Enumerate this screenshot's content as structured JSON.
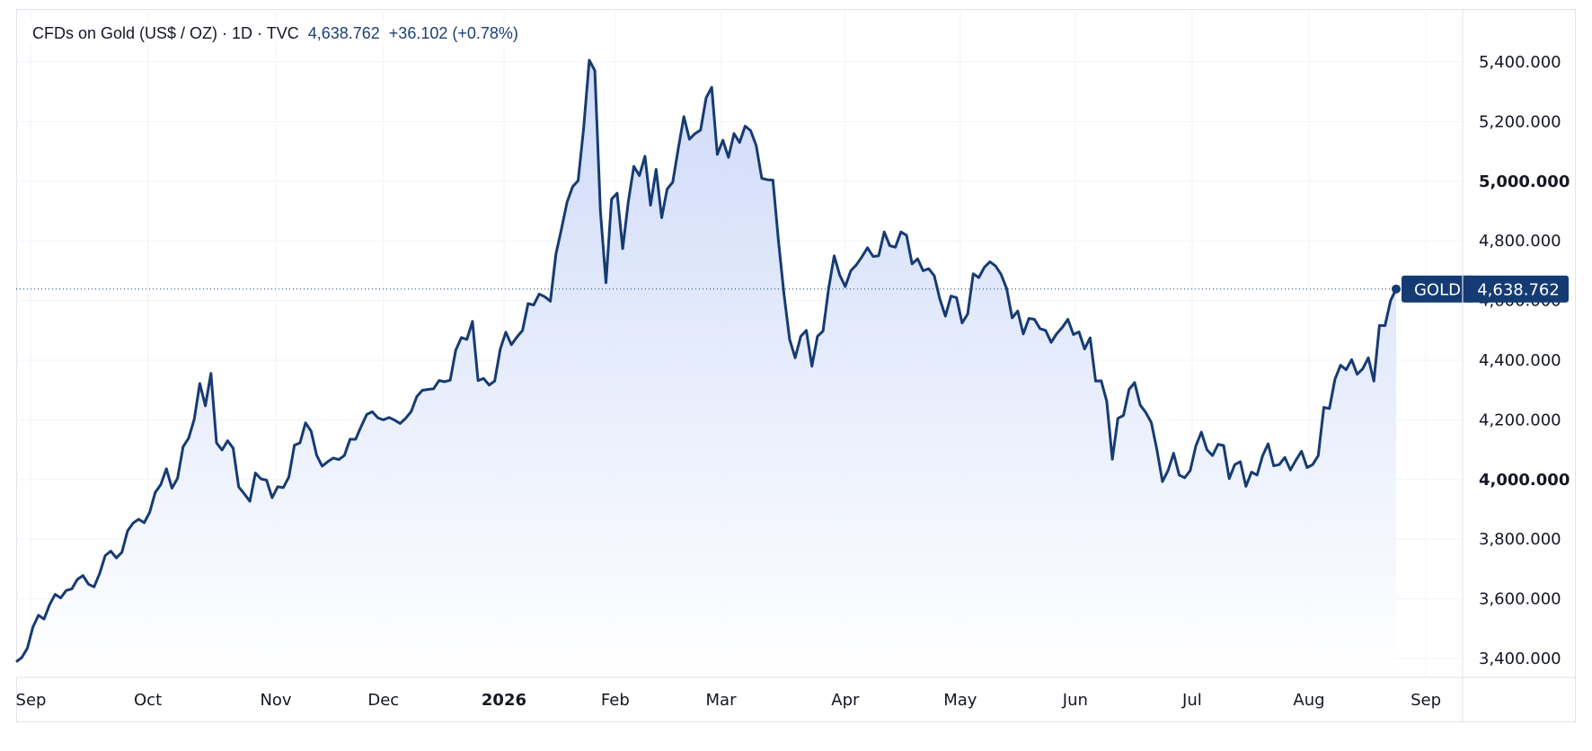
{
  "header": {
    "symbol_desc": "CFDs on Gold (US$ / OZ) · 1D · TVC",
    "last": "4,638.762",
    "change": "+36.102 (+0.78%)"
  },
  "price_label": {
    "ticker": "GOLD",
    "value": "4,638.762"
  },
  "colors": {
    "line": "#163b73",
    "fill_top": "#c9d6f8",
    "fill_bottom": "#ffffff",
    "grid": "#f0f3fa",
    "axis_border": "#e0e3eb"
  },
  "chart_data": {
    "type": "area",
    "series": [
      {
        "name": "GOLD",
        "points": [
          [
            0,
            3389
          ],
          [
            3,
            3403
          ],
          [
            6,
            3434
          ],
          [
            9,
            3505
          ],
          [
            12,
            3545
          ],
          [
            15,
            3532
          ],
          [
            18,
            3580
          ],
          [
            21,
            3615
          ],
          [
            24,
            3603
          ],
          [
            27,
            3628
          ],
          [
            30,
            3633
          ],
          [
            33,
            3665
          ],
          [
            36,
            3678
          ],
          [
            39,
            3649
          ],
          [
            42,
            3640
          ],
          [
            45,
            3685
          ],
          [
            48,
            3745
          ],
          [
            51,
            3760
          ],
          [
            54,
            3737
          ],
          [
            57,
            3756
          ],
          [
            60,
            3827
          ],
          [
            63,
            3854
          ],
          [
            66,
            3867
          ],
          [
            69,
            3855
          ],
          [
            72,
            3890
          ],
          [
            75,
            3957
          ],
          [
            78,
            3983
          ],
          [
            81,
            4036
          ],
          [
            84,
            3971
          ],
          [
            87,
            4004
          ],
          [
            90,
            4110
          ],
          [
            93,
            4139
          ],
          [
            96,
            4202
          ],
          [
            99,
            4322
          ],
          [
            102,
            4247
          ],
          [
            105,
            4356
          ],
          [
            108,
            4123
          ],
          [
            111,
            4099
          ],
          [
            114,
            4130
          ],
          [
            117,
            4105
          ],
          [
            120,
            3975
          ],
          [
            123,
            3952
          ],
          [
            126,
            3927
          ],
          [
            129,
            4022
          ],
          [
            132,
            4002
          ],
          [
            135,
            3998
          ],
          [
            138,
            3939
          ],
          [
            141,
            3976
          ],
          [
            144,
            3973
          ],
          [
            147,
            4008
          ],
          [
            150,
            4115
          ],
          [
            153,
            4123
          ],
          [
            156,
            4190
          ],
          [
            159,
            4162
          ],
          [
            162,
            4081
          ],
          [
            165,
            4045
          ],
          [
            168,
            4060
          ],
          [
            171,
            4072
          ],
          [
            174,
            4067
          ],
          [
            177,
            4081
          ],
          [
            180,
            4135
          ],
          [
            183,
            4135
          ],
          [
            186,
            4178
          ],
          [
            189,
            4218
          ],
          [
            192,
            4227
          ],
          [
            195,
            4207
          ],
          [
            198,
            4200
          ],
          [
            201,
            4208
          ],
          [
            204,
            4199
          ],
          [
            207,
            4188
          ],
          [
            210,
            4205
          ],
          [
            213,
            4228
          ],
          [
            216,
            4278
          ],
          [
            219,
            4299
          ],
          [
            222,
            4302
          ],
          [
            225,
            4304
          ],
          [
            228,
            4332
          ],
          [
            231,
            4328
          ],
          [
            234,
            4333
          ],
          [
            237,
            4434
          ],
          [
            240,
            4476
          ],
          [
            243,
            4470
          ],
          [
            246,
            4530
          ],
          [
            249,
            4332
          ],
          [
            252,
            4339
          ],
          [
            255,
            4317
          ],
          [
            258,
            4330
          ],
          [
            261,
            4437
          ],
          [
            264,
            4494
          ],
          [
            267,
            4452
          ],
          [
            270,
            4478
          ],
          [
            273,
            4500
          ],
          [
            276,
            4590
          ],
          [
            279,
            4585
          ],
          [
            282,
            4622
          ],
          [
            285,
            4613
          ],
          [
            288,
            4598
          ],
          [
            291,
            4756
          ],
          [
            294,
            4841
          ],
          [
            297,
            4930
          ],
          [
            300,
            4982
          ],
          [
            303,
            5002
          ],
          [
            306,
            5180
          ],
          [
            309,
            5406
          ],
          [
            312,
            5371
          ],
          [
            315,
            4900
          ],
          [
            318,
            4660
          ],
          [
            321,
            4940
          ],
          [
            324,
            4960
          ],
          [
            327,
            4774
          ],
          [
            330,
            4930
          ],
          [
            333,
            5050
          ],
          [
            336,
            5019
          ],
          [
            339,
            5084
          ],
          [
            342,
            4920
          ],
          [
            345,
            5040
          ],
          [
            348,
            4878
          ],
          [
            351,
            4974
          ],
          [
            354,
            4997
          ],
          [
            357,
            5110
          ],
          [
            360,
            5217
          ],
          [
            363,
            5141
          ],
          [
            366,
            5160
          ],
          [
            369,
            5172
          ],
          [
            372,
            5280
          ],
          [
            375,
            5315
          ],
          [
            378,
            5090
          ],
          [
            381,
            5138
          ],
          [
            384,
            5080
          ],
          [
            387,
            5160
          ],
          [
            390,
            5130
          ],
          [
            393,
            5185
          ],
          [
            396,
            5170
          ],
          [
            399,
            5120
          ],
          [
            402,
            5010
          ],
          [
            405,
            5005
          ],
          [
            408,
            5004
          ],
          [
            411,
            4800
          ],
          [
            414,
            4620
          ],
          [
            417,
            4470
          ],
          [
            420,
            4408
          ],
          [
            423,
            4480
          ],
          [
            426,
            4500
          ],
          [
            429,
            4380
          ],
          [
            432,
            4480
          ],
          [
            435,
            4498
          ],
          [
            438,
            4640
          ],
          [
            441,
            4750
          ],
          [
            444,
            4686
          ],
          [
            447,
            4647
          ],
          [
            450,
            4700
          ],
          [
            453,
            4720
          ],
          [
            456,
            4747
          ],
          [
            459,
            4777
          ],
          [
            462,
            4748
          ],
          [
            465,
            4750
          ],
          [
            468,
            4830
          ],
          [
            471,
            4784
          ],
          [
            474,
            4779
          ],
          [
            477,
            4830
          ],
          [
            480,
            4819
          ],
          [
            483,
            4723
          ],
          [
            486,
            4740
          ],
          [
            489,
            4700
          ],
          [
            492,
            4707
          ],
          [
            495,
            4683
          ],
          [
            498,
            4605
          ],
          [
            501,
            4548
          ],
          [
            504,
            4615
          ],
          [
            507,
            4610
          ],
          [
            510,
            4525
          ],
          [
            513,
            4555
          ],
          [
            516,
            4690
          ],
          [
            519,
            4677
          ],
          [
            522,
            4712
          ],
          [
            525,
            4730
          ],
          [
            528,
            4716
          ],
          [
            531,
            4688
          ],
          [
            534,
            4640
          ],
          [
            537,
            4542
          ],
          [
            540,
            4565
          ],
          [
            543,
            4488
          ],
          [
            546,
            4540
          ],
          [
            549,
            4537
          ],
          [
            552,
            4506
          ],
          [
            555,
            4500
          ],
          [
            558,
            4460
          ],
          [
            561,
            4489
          ],
          [
            564,
            4510
          ],
          [
            567,
            4537
          ],
          [
            570,
            4486
          ],
          [
            573,
            4495
          ],
          [
            576,
            4438
          ],
          [
            579,
            4475
          ],
          [
            582,
            4330
          ],
          [
            585,
            4331
          ],
          [
            588,
            4262
          ],
          [
            591,
            4068
          ],
          [
            594,
            4205
          ],
          [
            597,
            4215
          ],
          [
            600,
            4302
          ],
          [
            603,
            4325
          ],
          [
            606,
            4250
          ],
          [
            609,
            4225
          ],
          [
            612,
            4191
          ],
          [
            615,
            4100
          ],
          [
            618,
            3993
          ],
          [
            621,
            4030
          ],
          [
            624,
            4088
          ],
          [
            627,
            4015
          ],
          [
            630,
            4006
          ],
          [
            633,
            4030
          ],
          [
            636,
            4112
          ],
          [
            639,
            4159
          ],
          [
            642,
            4100
          ],
          [
            645,
            4080
          ],
          [
            648,
            4118
          ],
          [
            651,
            4114
          ],
          [
            654,
            4003
          ],
          [
            657,
            4050
          ],
          [
            660,
            4060
          ],
          [
            663,
            3977
          ],
          [
            666,
            4025
          ],
          [
            669,
            4015
          ],
          [
            672,
            4080
          ],
          [
            675,
            4120
          ],
          [
            678,
            4046
          ],
          [
            681,
            4050
          ],
          [
            684,
            4074
          ],
          [
            687,
            4032
          ],
          [
            690,
            4065
          ],
          [
            693,
            4095
          ],
          [
            696,
            4040
          ],
          [
            699,
            4050
          ],
          [
            702,
            4080
          ],
          [
            705,
            4242
          ],
          [
            708,
            4238
          ],
          [
            711,
            4336
          ],
          [
            714,
            4383
          ],
          [
            717,
            4368
          ],
          [
            720,
            4402
          ],
          [
            723,
            4353
          ],
          [
            726,
            4371
          ],
          [
            729,
            4408
          ],
          [
            732,
            4330
          ],
          [
            735,
            4517
          ],
          [
            738,
            4516
          ],
          [
            741,
            4600
          ],
          [
            744,
            4638.762
          ]
        ]
      }
    ],
    "x_axis": {
      "start_date": "Sep",
      "ticks": [
        {
          "day": 8,
          "label": "Sep"
        },
        {
          "day": 71,
          "label": "Oct"
        },
        {
          "day": 140,
          "label": "Nov"
        },
        {
          "day": 198,
          "label": "Dec"
        },
        {
          "day": 263,
          "label": "2026",
          "bold": true
        },
        {
          "day": 323,
          "label": "Feb"
        },
        {
          "day": 380,
          "label": "Mar"
        },
        {
          "day": 447,
          "label": "Apr"
        },
        {
          "day": 509,
          "label": "May"
        },
        {
          "day": 571,
          "label": "Jun"
        },
        {
          "day": 634,
          "label": "Jul"
        },
        {
          "day": 697,
          "label": "Aug"
        },
        {
          "day": 760,
          "label": "Sep"
        }
      ],
      "range": [
        0,
        780
      ]
    },
    "y_axis": {
      "range": [
        3380,
        5440
      ],
      "ticks": [
        {
          "value": 3400,
          "label": "3,400.000"
        },
        {
          "value": 3600,
          "label": "3,600.000"
        },
        {
          "value": 3800,
          "label": "3,800.000"
        },
        {
          "value": 4000,
          "label": "4,000.000",
          "bold": true
        },
        {
          "value": 4200,
          "label": "4,200.000"
        },
        {
          "value": 4400,
          "label": "4,400.000"
        },
        {
          "value": 4600,
          "label": "4,600.000"
        },
        {
          "value": 4800,
          "label": "4,800.000"
        },
        {
          "value": 5000,
          "label": "5,000.000",
          "bold": true
        },
        {
          "value": 5200,
          "label": "5,200.000"
        },
        {
          "value": 5400,
          "label": "5,400.000"
        }
      ],
      "position": "right"
    },
    "last_value": 4638.762,
    "grid": true
  }
}
